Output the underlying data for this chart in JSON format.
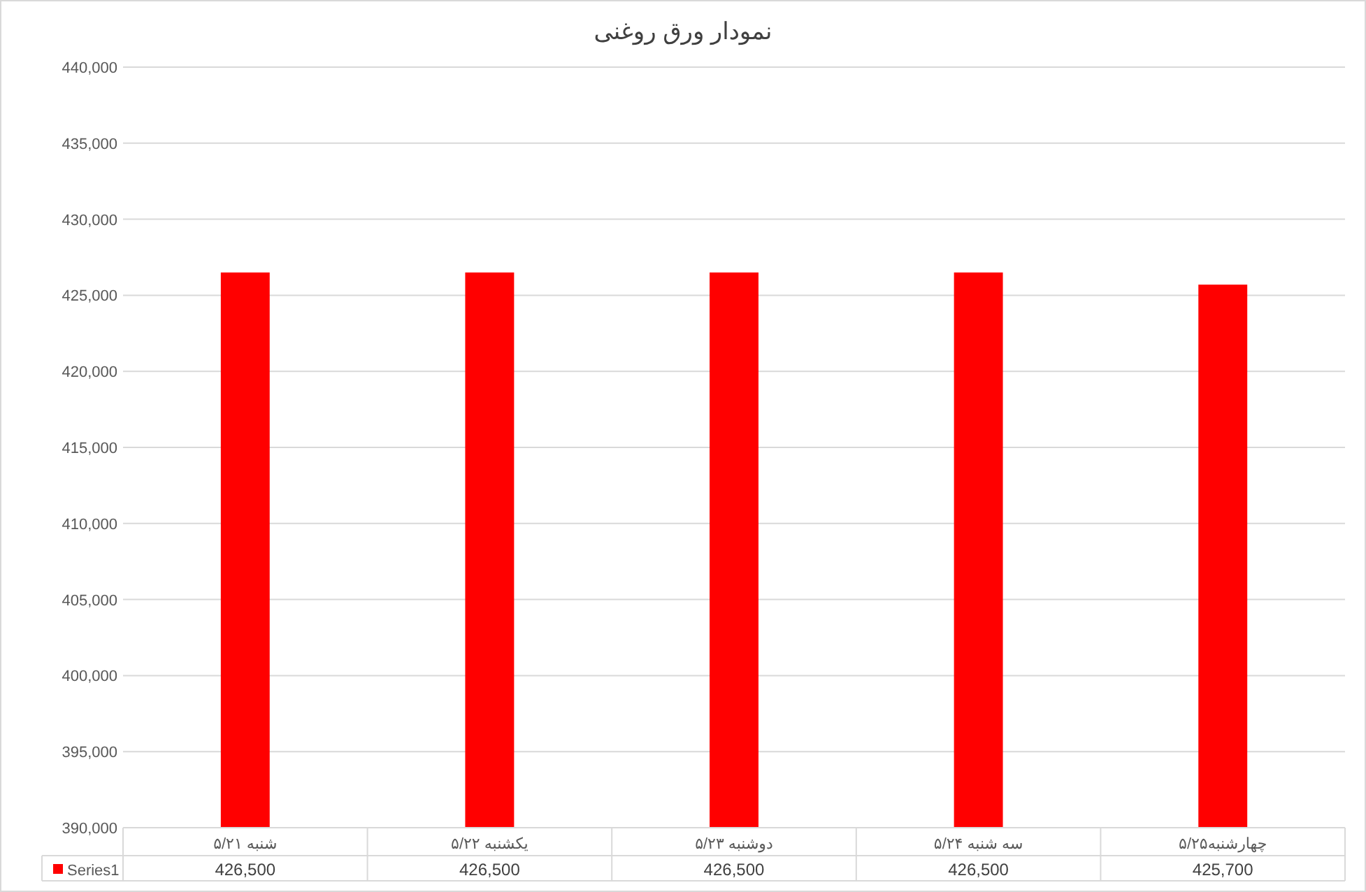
{
  "chart_data": {
    "type": "bar",
    "title": "نمودار ورق روغنی",
    "categories": [
      "شنبه ۵/۲۱",
      "یکشنبه ۵/۲۲",
      "دوشنبه ۵/۲۳",
      "سه شنبه ۵/۲۴",
      "چهارشنبه۵/۲۵"
    ],
    "series": [
      {
        "name": "Series1",
        "color": "#ff0000",
        "values": [
          426500,
          426500,
          426500,
          426500,
          425700
        ],
        "value_labels": [
          "426,500",
          "426,500",
          "426,500",
          "426,500",
          "425,700"
        ]
      }
    ],
    "ylim": [
      390000,
      440000
    ],
    "yticks": [
      {
        "value": 390000,
        "label": "390,000"
      },
      {
        "value": 395000,
        "label": "395,000"
      },
      {
        "value": 400000,
        "label": "400,000"
      },
      {
        "value": 405000,
        "label": "405,000"
      },
      {
        "value": 410000,
        "label": "410,000"
      },
      {
        "value": 415000,
        "label": "415,000"
      },
      {
        "value": 420000,
        "label": "420,000"
      },
      {
        "value": 425000,
        "label": "425,000"
      },
      {
        "value": 430000,
        "label": "430,000"
      },
      {
        "value": 435000,
        "label": "435,000"
      },
      {
        "value": 440000,
        "label": "440,000"
      }
    ],
    "grid": "y",
    "legend": "bottom"
  }
}
